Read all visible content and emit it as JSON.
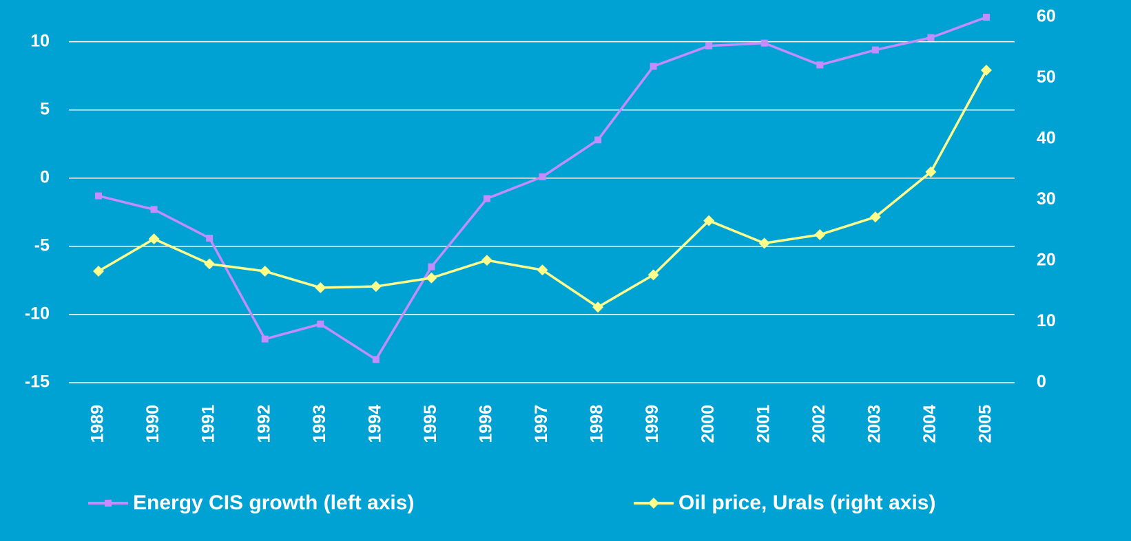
{
  "chart_data": {
    "type": "line",
    "categories": [
      "1989",
      "1990",
      "1991",
      "1992",
      "1993",
      "1994",
      "1995",
      "1996",
      "1997",
      "1998",
      "1999",
      "2000",
      "2001",
      "2002",
      "2003",
      "2004",
      "2005"
    ],
    "series": [
      {
        "name": "Energy CIS growth (left axis)",
        "color": "#c38cff",
        "marker": "square",
        "values": [
          -1.3,
          -2.3,
          -4.4,
          -11.8,
          -10.7,
          -13.3,
          -6.5,
          -1.5,
          0.1,
          2.8,
          8.2,
          9.7,
          9.9,
          8.3,
          9.4,
          10.3,
          11.8
        ]
      },
      {
        "name": "Oil price, Urals (right axis)",
        "color": "#ffff8c",
        "marker": "diamond",
        "axis": "y2",
        "values": [
          18.3,
          23.6,
          19.5,
          18.3,
          15.6,
          15.8,
          17.2,
          20.1,
          18.5,
          12.4,
          17.7,
          26.6,
          22.9,
          24.3,
          27.2,
          34.6,
          51.3
        ]
      }
    ],
    "ylim": [
      -15,
      11.8
    ],
    "yticks": [
      -15,
      -10,
      -5,
      0,
      5,
      10
    ],
    "y2lim": [
      0,
      60
    ],
    "y2ticks": [
      0,
      10,
      20,
      30,
      40,
      50,
      60
    ],
    "grid": true,
    "legend": "bottom"
  }
}
